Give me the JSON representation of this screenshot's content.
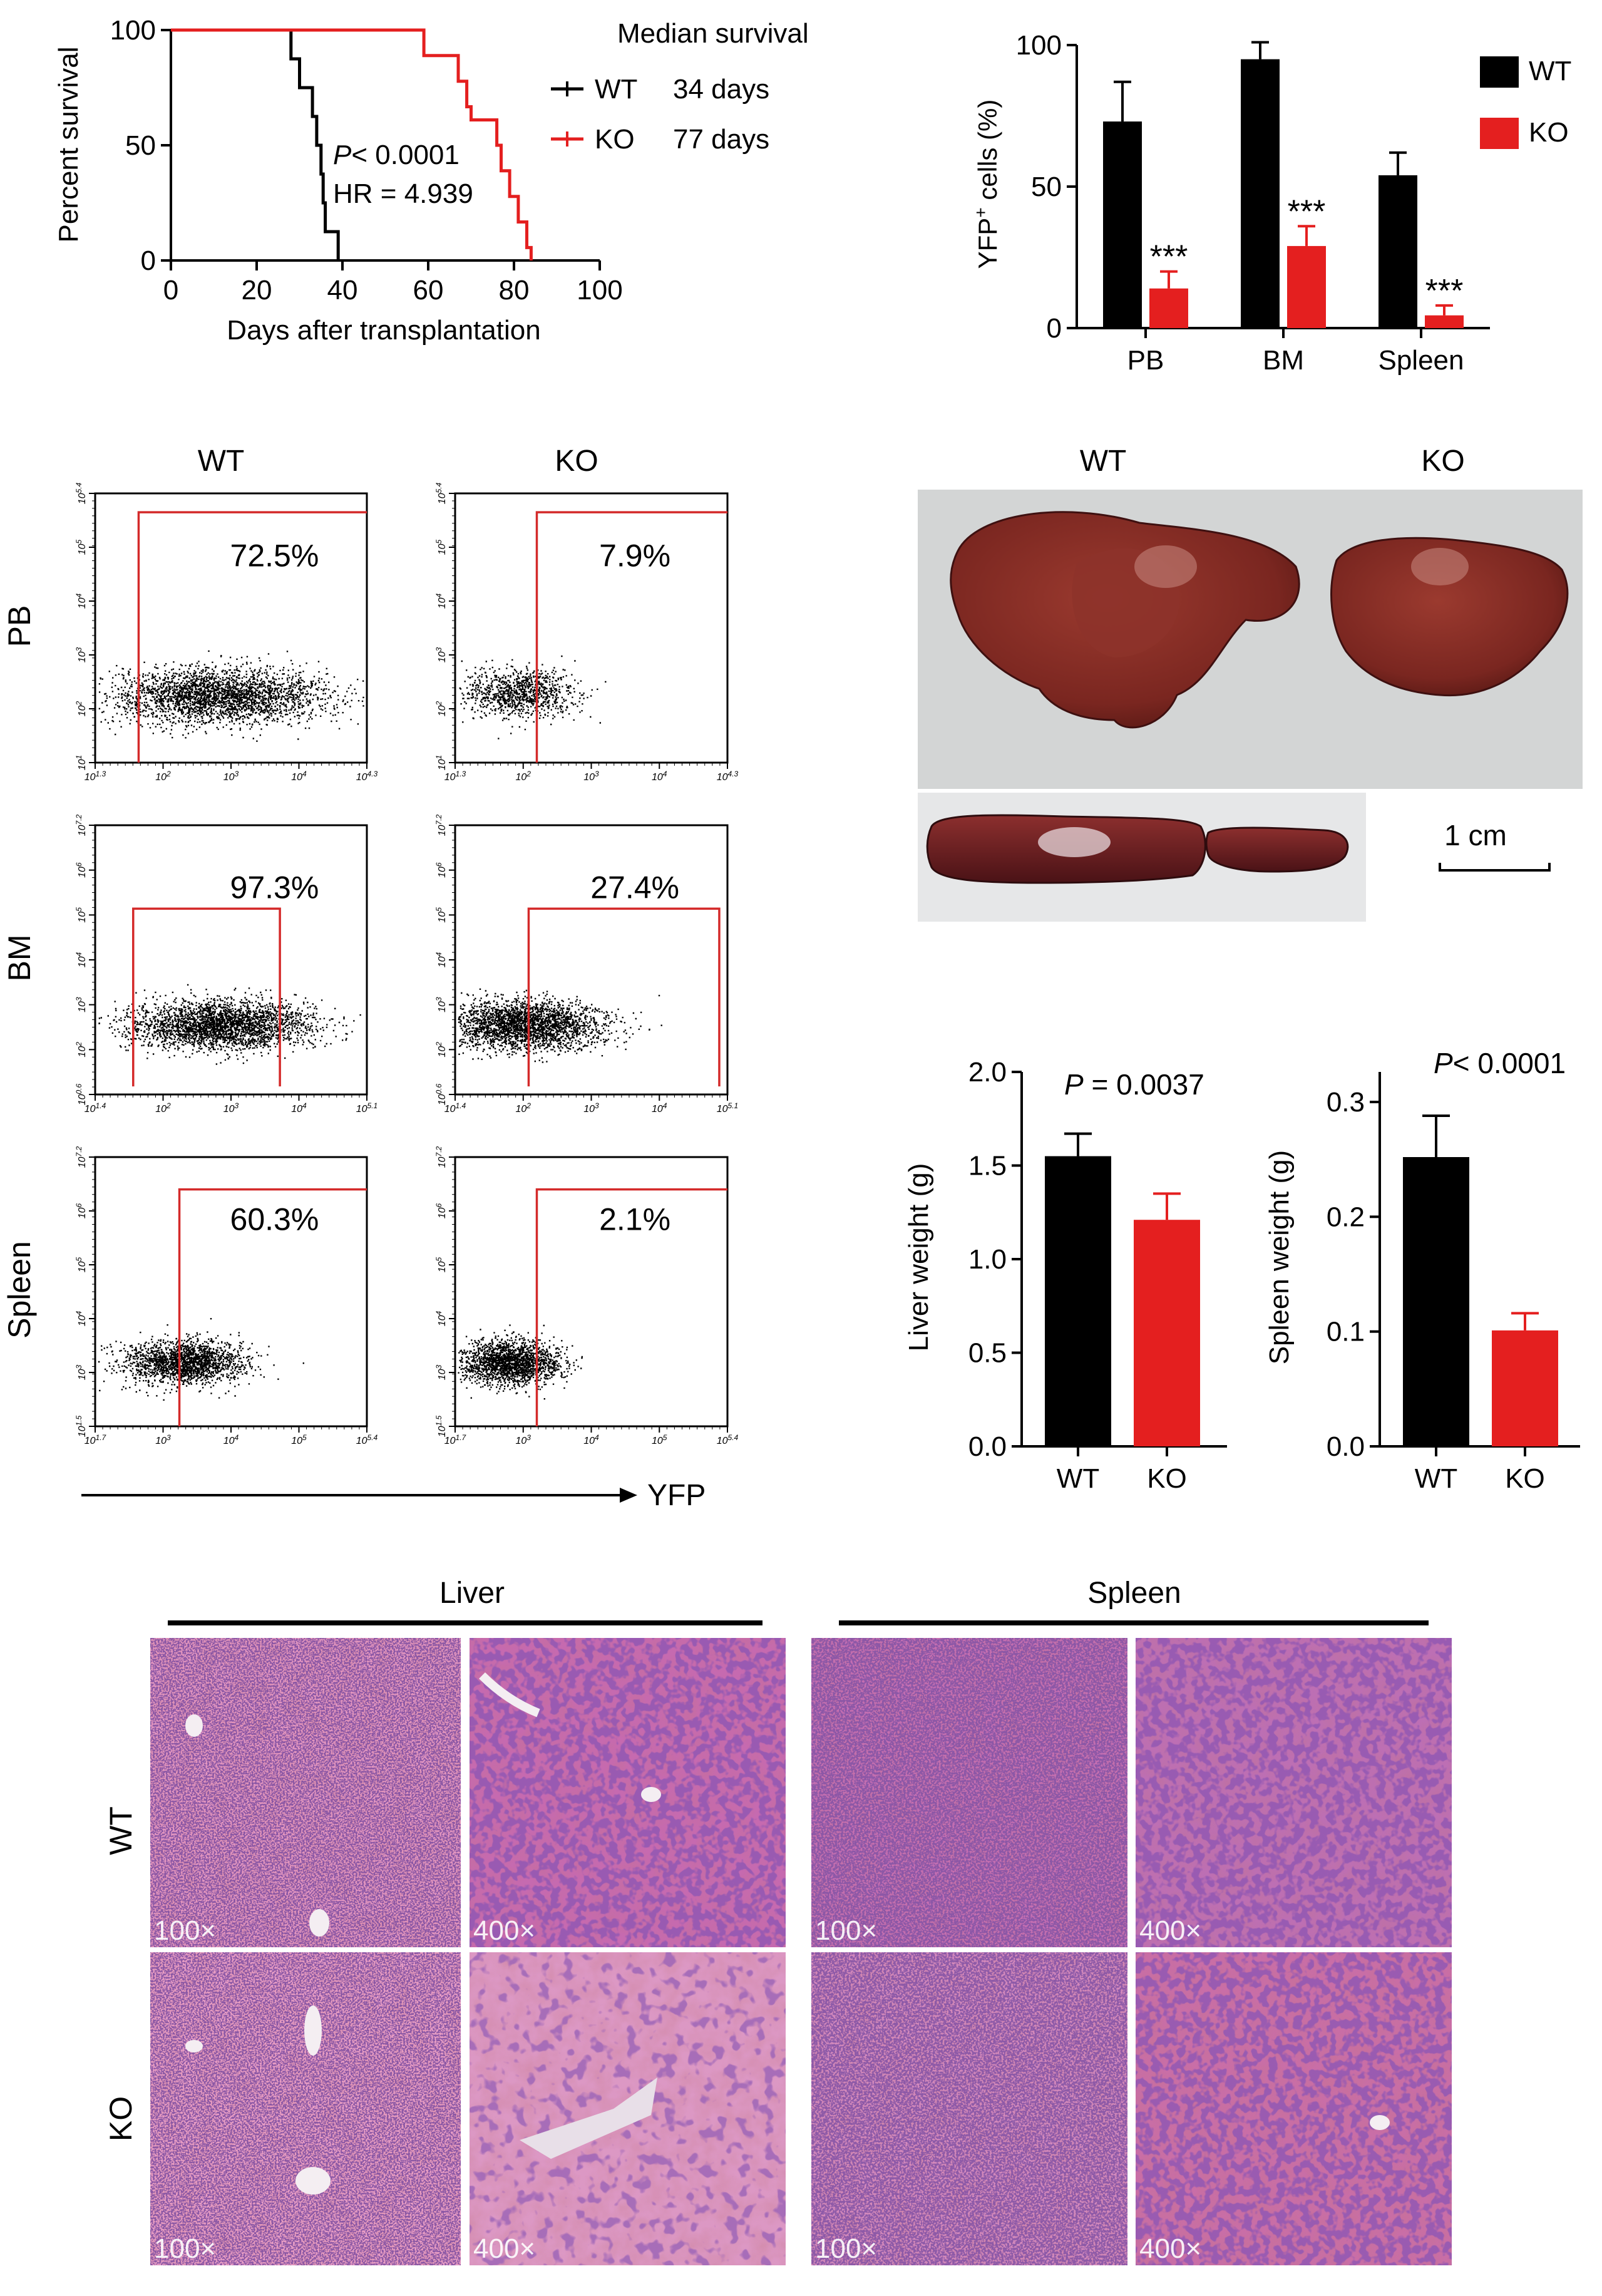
{
  "colors": {
    "wt": "#000000",
    "ko": "#e41f1f",
    "gate": "#d42a2a",
    "he_bg": "#e48fb8",
    "nuclei": "#3d1858"
  },
  "survival": {
    "ylabel": "Percent survival",
    "xlabel": "Days after transplantation",
    "xticks": [
      "0",
      "20",
      "40",
      "60",
      "80",
      "100"
    ],
    "yticks": [
      "0",
      "50",
      "100"
    ],
    "legend_title": "Median survival",
    "legend": [
      {
        "group": "WT",
        "median": "34 days"
      },
      {
        "group": "KO",
        "median": "77 days"
      }
    ],
    "p_prefix": "P",
    "p_text": "< 0.0001",
    "hr_text": "HR = 4.939"
  },
  "yfp_bar": {
    "ylabel_main": "YFP",
    "ylabel_sup": "+",
    "ylabel_rest": " cells (%)",
    "yticks": [
      "0",
      "50",
      "100"
    ],
    "categories": [
      "PB",
      "BM",
      "Spleen"
    ],
    "legend": [
      "WT",
      "KO"
    ],
    "sig": "***"
  },
  "flow": {
    "col_labels": [
      "WT",
      "KO"
    ],
    "row_labels": [
      "PB",
      "BM",
      "Spleen"
    ],
    "percents": [
      [
        "72.5%",
        "7.9%"
      ],
      [
        "97.3%",
        "27.4%"
      ],
      [
        "60.3%",
        "2.1%"
      ]
    ],
    "x_axis_label": "YFP",
    "rows": [
      {
        "x_ticks": [
          "10^1.3",
          "10^2",
          "10^3",
          "10^4",
          "10^4.3"
        ],
        "y_ticks": [
          "10^1",
          "10^2",
          "10^3",
          "10^4",
          "10^5",
          "10^5.4"
        ]
      },
      {
        "x_ticks": [
          "10^1.4",
          "10^2",
          "10^3",
          "10^4",
          "10^5.1"
        ],
        "y_ticks": [
          "10^0.6",
          "10^2",
          "10^3",
          "10^4",
          "10^5",
          "10^6",
          "10^7.2"
        ]
      },
      {
        "x_ticks": [
          "10^1.7",
          "10^3",
          "10^4",
          "10^5",
          "10^5.4"
        ],
        "y_ticks": [
          "10^1.5",
          "10^3",
          "10^4",
          "10^5",
          "10^6",
          "10^7.2"
        ]
      }
    ]
  },
  "organs": {
    "col_labels": [
      "WT",
      "KO"
    ],
    "scale_bar": "1 cm"
  },
  "liver_bar": {
    "ylabel": "Liver weight (g)",
    "yticks": [
      "0.0",
      "0.5",
      "1.0",
      "1.5",
      "2.0"
    ],
    "categories": [
      "WT",
      "KO"
    ],
    "p_prefix": "P",
    "p_text": " = 0.0037"
  },
  "spleen_bar": {
    "ylabel": "Spleen weight (g)",
    "yticks": [
      "0.0",
      "0.1",
      "0.2",
      "0.3"
    ],
    "categories": [
      "WT",
      "KO"
    ],
    "p_prefix": "P",
    "p_text": "< 0.0001"
  },
  "histology": {
    "groups": [
      "Liver",
      "Spleen"
    ],
    "row_labels": [
      "WT",
      "KO"
    ],
    "mags": [
      "100×",
      "400×",
      "100×",
      "400×"
    ]
  },
  "chart_data": [
    {
      "type": "line",
      "title": "",
      "xlabel": "Days after transplantation",
      "ylabel": "Percent survival",
      "xlim": [
        0,
        100
      ],
      "ylim": [
        0,
        100
      ],
      "series": [
        {
          "name": "WT",
          "points": [
            [
              0,
              100
            ],
            [
              28,
              100
            ],
            [
              28,
              87.5
            ],
            [
              30,
              87.5
            ],
            [
              30,
              75
            ],
            [
              33,
              75
            ],
            [
              33,
              62.5
            ],
            [
              34,
              62.5
            ],
            [
              34,
              50
            ],
            [
              35,
              50
            ],
            [
              35,
              37.5
            ],
            [
              35.5,
              37.5
            ],
            [
              35.5,
              25
            ],
            [
              36,
              25
            ],
            [
              36,
              12.5
            ],
            [
              39,
              12.5
            ],
            [
              39,
              0
            ]
          ]
        },
        {
          "name": "KO",
          "points": [
            [
              0,
              100
            ],
            [
              59,
              100
            ],
            [
              59,
              88.9
            ],
            [
              67,
              88.9
            ],
            [
              67,
              77.8
            ],
            [
              69,
              77.8
            ],
            [
              69,
              66.7
            ],
            [
              70,
              66.7
            ],
            [
              70,
              61
            ],
            [
              76,
              61
            ],
            [
              76,
              50
            ],
            [
              77,
              50
            ],
            [
              77,
              38.9
            ],
            [
              79,
              38.9
            ],
            [
              79,
              27.8
            ],
            [
              81,
              27.8
            ],
            [
              81,
              16.7
            ],
            [
              83,
              16.7
            ],
            [
              83,
              5.6
            ],
            [
              84,
              5.6
            ],
            [
              84,
              0
            ]
          ]
        }
      ]
    },
    {
      "type": "bar",
      "title": "",
      "ylabel": "YFP+ cells (%)",
      "categories": [
        "PB",
        "BM",
        "Spleen"
      ],
      "ylim": [
        0,
        100
      ],
      "series": [
        {
          "name": "WT",
          "values": [
            73,
            95,
            54
          ],
          "errors": [
            14,
            6,
            8
          ]
        },
        {
          "name": "KO",
          "values": [
            14,
            29,
            4.5
          ],
          "errors": [
            6,
            7,
            3.5
          ]
        }
      ]
    },
    {
      "type": "bar",
      "title": "",
      "ylabel": "Liver weight (g)",
      "categories": [
        "WT",
        "KO"
      ],
      "values": [
        1.55,
        1.21
      ],
      "errors": [
        0.12,
        0.14
      ],
      "ylim": [
        0,
        2.0
      ]
    },
    {
      "type": "bar",
      "title": "",
      "ylabel": "Spleen weight (g)",
      "categories": [
        "WT",
        "KO"
      ],
      "values": [
        0.252,
        0.101
      ],
      "errors": [
        0.036,
        0.015
      ],
      "ylim": [
        0,
        0.3
      ]
    }
  ]
}
